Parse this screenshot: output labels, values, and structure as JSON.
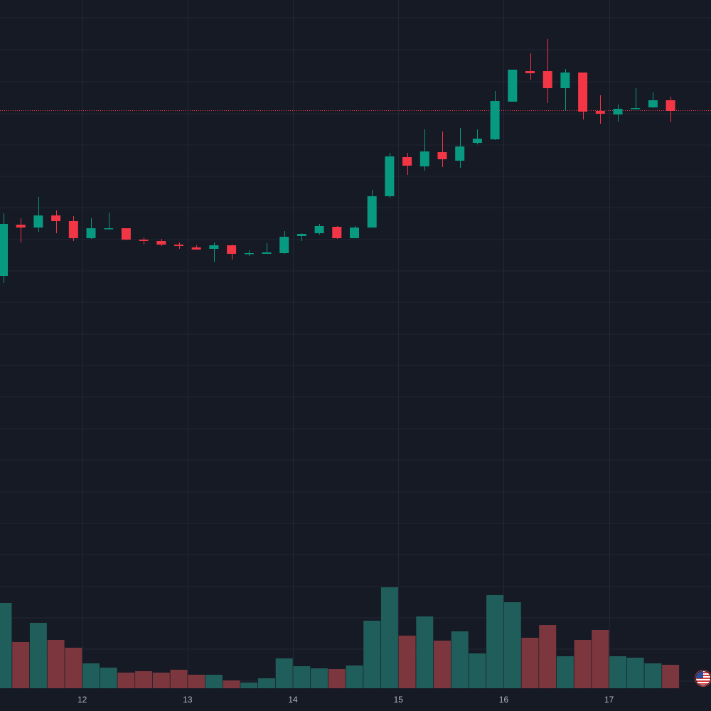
{
  "chart_data": {
    "type": "candlestick",
    "title": "",
    "xlabel": "",
    "ylabel": "",
    "price_unit": "relative price level (no price scale visible)",
    "ylim": [
      0,
      1000
    ],
    "grid": true,
    "x_ticks": [
      {
        "label": "12",
        "at": 4.5
      },
      {
        "label": "13",
        "at": 10.5
      },
      {
        "label": "14",
        "at": 16.5
      },
      {
        "label": "15",
        "at": 22.5
      },
      {
        "label": "16",
        "at": 28.5
      },
      {
        "label": "17",
        "at": 34.5
      }
    ],
    "last_price": 845,
    "candles": [
      {
        "o": 612,
        "h": 700,
        "l": 602,
        "c": 685,
        "v": 120
      },
      {
        "o": 684,
        "h": 693,
        "l": 659,
        "c": 680,
        "v": 65
      },
      {
        "o": 680,
        "h": 723,
        "l": 674,
        "c": 697,
        "v": 92
      },
      {
        "o": 697,
        "h": 704,
        "l": 672,
        "c": 689,
        "v": 68
      },
      {
        "o": 689,
        "h": 696,
        "l": 661,
        "c": 665,
        "v": 57
      },
      {
        "o": 665,
        "h": 693,
        "l": 664,
        "c": 679,
        "v": 35
      },
      {
        "o": 678,
        "h": 701,
        "l": 677,
        "c": 679,
        "v": 29
      },
      {
        "o": 679,
        "h": 679,
        "l": 662,
        "c": 663,
        "v": 22
      },
      {
        "o": 663,
        "h": 666,
        "l": 656,
        "c": 661,
        "v": 24
      },
      {
        "o": 661,
        "h": 664,
        "l": 654,
        "c": 656,
        "v": 22
      },
      {
        "o": 656,
        "h": 659,
        "l": 650,
        "c": 654,
        "v": 26
      },
      {
        "o": 652,
        "h": 655,
        "l": 649,
        "c": 649,
        "v": 19
      },
      {
        "o": 650,
        "h": 659,
        "l": 632,
        "c": 655,
        "v": 19
      },
      {
        "o": 655,
        "h": 656,
        "l": 635,
        "c": 643,
        "v": 11
      },
      {
        "o": 643,
        "h": 648,
        "l": 640,
        "c": 644,
        "v": 8
      },
      {
        "o": 643,
        "h": 658,
        "l": 643,
        "c": 645,
        "v": 14
      },
      {
        "o": 644,
        "h": 675,
        "l": 643,
        "c": 667,
        "v": 42
      },
      {
        "o": 668,
        "h": 672,
        "l": 661,
        "c": 671,
        "v": 31
      },
      {
        "o": 672,
        "h": 685,
        "l": 670,
        "c": 682,
        "v": 28
      },
      {
        "o": 681,
        "h": 682,
        "l": 664,
        "c": 665,
        "v": 27
      },
      {
        "o": 665,
        "h": 682,
        "l": 665,
        "c": 680,
        "v": 32
      },
      {
        "o": 680,
        "h": 733,
        "l": 680,
        "c": 724,
        "v": 95
      },
      {
        "o": 724,
        "h": 785,
        "l": 722,
        "c": 780,
        "v": 142
      },
      {
        "o": 779,
        "h": 785,
        "l": 754,
        "c": 767,
        "v": 74
      },
      {
        "o": 766,
        "h": 818,
        "l": 760,
        "c": 787,
        "v": 101
      },
      {
        "o": 786,
        "h": 815,
        "l": 765,
        "c": 776,
        "v": 67
      },
      {
        "o": 774,
        "h": 820,
        "l": 764,
        "c": 794,
        "v": 80
      },
      {
        "o": 799,
        "h": 818,
        "l": 797,
        "c": 805,
        "v": 49
      },
      {
        "o": 804,
        "h": 872,
        "l": 803,
        "c": 858,
        "v": 131
      },
      {
        "o": 857,
        "h": 902,
        "l": 857,
        "c": 902,
        "v": 121
      },
      {
        "o": 900,
        "h": 925,
        "l": 888,
        "c": 897,
        "v": 71
      },
      {
        "o": 900,
        "h": 945,
        "l": 855,
        "c": 876,
        "v": 89
      },
      {
        "o": 876,
        "h": 903,
        "l": 844,
        "c": 898,
        "v": 45
      },
      {
        "o": 898,
        "h": 898,
        "l": 832,
        "c": 843,
        "v": 68
      },
      {
        "o": 844,
        "h": 866,
        "l": 826,
        "c": 840,
        "v": 82
      },
      {
        "o": 839,
        "h": 853,
        "l": 829,
        "c": 847,
        "v": 45
      },
      {
        "o": 848,
        "h": 876,
        "l": 846,
        "c": 848,
        "v": 43
      },
      {
        "o": 849,
        "h": 870,
        "l": 848,
        "c": 859,
        "v": 35
      },
      {
        "o": 859,
        "h": 864,
        "l": 828,
        "c": 844,
        "v": 33
      }
    ]
  },
  "colors": {
    "background": "#161a25",
    "grid": "#232733",
    "up": "#089981",
    "down": "#f23645",
    "up_volume": "#1f5e5a",
    "down_volume": "#7c363d",
    "last_price_line": "#f23645",
    "axis_text": "#b2b5be"
  },
  "icons": {
    "flag": "us-flag-icon"
  }
}
